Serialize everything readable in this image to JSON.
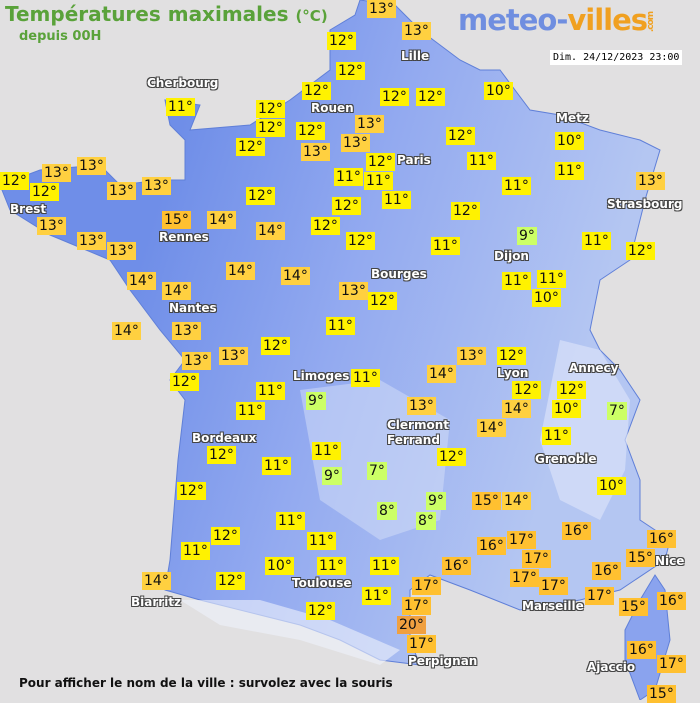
{
  "header": {
    "title": "Températures maximales",
    "title_unit": "(°C)",
    "subtitle": "depuis 00H",
    "logo_main": "meteo-",
    "logo_accent": "villes",
    "logo_suffix": ".com",
    "datetime": "Dim. 24/12/2023 23:00"
  },
  "footer": "Pour afficher le nom de la ville : survolez avec la souris",
  "colors": {
    "land_west": "#6f8ee8",
    "land_east": "#b4c6f2",
    "sea": "#e1e0e1",
    "cold_label": "#ccff66",
    "mild_label": "#fff200",
    "warm_label": "#ffd040",
    "hot_label": "#ffc030",
    "very_hot_label": "#f0a040"
  },
  "cities": [
    "Cherbourg",
    "Lille",
    "Rouen",
    "Paris",
    "Metz",
    "Strasbourg",
    "Brest",
    "Rennes",
    "Dijon",
    "Bourges",
    "Nantes",
    "Limoges",
    "Annecy",
    "Lyon",
    "Clermont",
    "Ferrand",
    "Grenoble",
    "Bordeaux",
    "Nice",
    "Toulouse",
    "Marseille",
    "Biarritz",
    "Perpignan",
    "Ajaccio"
  ],
  "temperatures": [
    "13°",
    "13°",
    "12°",
    "12°",
    "12°",
    "12°",
    "12°",
    "10°",
    "11°",
    "12°",
    "12°",
    "12°",
    "13°",
    "12°",
    "13°",
    "13°",
    "12°",
    "12°",
    "11°",
    "10°",
    "11°",
    "13°",
    "12°",
    "13°",
    "12°",
    "13°",
    "13°",
    "11°",
    "11°",
    "11°",
    "11°",
    "13°",
    "12°",
    "12°",
    "12°",
    "15°",
    "14°",
    "14°",
    "12°",
    "13°",
    "13°",
    "13°",
    "12°",
    "11°",
    "9°",
    "11°",
    "12°",
    "14°",
    "14°",
    "14°",
    "14°",
    "13°",
    "12°",
    "11°",
    "11°",
    "10°",
    "14°",
    "13°",
    "11°",
    "12°",
    "13°",
    "13°",
    "13°",
    "12°",
    "12°",
    "11°",
    "11°",
    "9°",
    "14°",
    "12°",
    "12°",
    "14°",
    "10°",
    "7°",
    "11°",
    "13°",
    "14°",
    "11°",
    "12°",
    "11°",
    "12°",
    "11°",
    "9°",
    "7°",
    "10°",
    "12°",
    "9°",
    "8°",
    "8°",
    "15°",
    "14°",
    "16°",
    "12°",
    "11°",
    "11°",
    "16°",
    "17°",
    "16°",
    "15°",
    "17°",
    "16°",
    "11°",
    "10°",
    "11°",
    "11°",
    "16°",
    "17°",
    "17°",
    "14°",
    "12°",
    "17°",
    "17°",
    "16°",
    "11°",
    "15°",
    "12°",
    "17°",
    "20°",
    "17°",
    "16°",
    "17°",
    "15°"
  ]
}
